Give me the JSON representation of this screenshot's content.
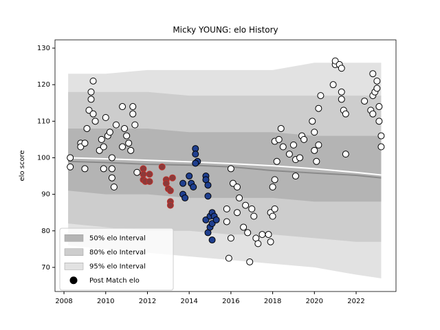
{
  "chart_data": {
    "type": "scatter",
    "title": "Micky YOUNG: elo History",
    "y_label": "elo score",
    "xlim": [
      2007.57,
      2023.91
    ],
    "ylim": [
      63.4,
      132.26
    ],
    "xticks": [
      2008,
      2010,
      2012,
      2014,
      2016,
      2018,
      2020,
      2022
    ],
    "yticks": [
      70,
      80,
      90,
      100,
      110,
      120,
      130
    ],
    "legend_position": "lower left",
    "bands": [
      {
        "name": "95% elo Interval",
        "color": "#e2e2e2",
        "x": [
          2008.2,
          2010,
          2012,
          2014,
          2016,
          2018,
          2020,
          2022,
          2023.2
        ],
        "upper": [
          123,
          123,
          124,
          124,
          124,
          124,
          126,
          126,
          126
        ],
        "lower": [
          76,
          75,
          74,
          73,
          72,
          71,
          70,
          68,
          67
        ]
      },
      {
        "name": "80% elo Interval",
        "color": "#cdcdcd",
        "x": [
          2008.2,
          2010,
          2012,
          2014,
          2016,
          2018,
          2020,
          2022,
          2023.2
        ],
        "upper": [
          118,
          118,
          118,
          117,
          117,
          117,
          117,
          117,
          117
        ],
        "lower": [
          82,
          81,
          80,
          80,
          79,
          79,
          78,
          77,
          77
        ]
      },
      {
        "name": "50% elo Interval",
        "color": "#b4b4b4",
        "x": [
          2008.2,
          2010,
          2012,
          2014,
          2016,
          2018,
          2020,
          2022,
          2023.2
        ],
        "upper": [
          108,
          108,
          108,
          107,
          107,
          107,
          106,
          106,
          106
        ],
        "lower": [
          91,
          90,
          90,
          89,
          89,
          89,
          88,
          88,
          88
        ]
      }
    ],
    "lines": [
      {
        "color": "#8a8a8a",
        "x": [
          2008.2,
          2010,
          2012,
          2014,
          2016,
          2018,
          2020,
          2022,
          2023.2
        ],
        "values": [
          99,
          98.7,
          98.2,
          98,
          97.5,
          96.5,
          95.8,
          95.2,
          94.5
        ]
      },
      {
        "color": "#ffffff",
        "x": [
          2008.2,
          2010,
          2012,
          2014,
          2016,
          2018,
          2020,
          2022,
          2023.2
        ],
        "values": [
          100,
          99.7,
          99.3,
          98.9,
          98.4,
          97.8,
          97,
          96,
          95.3
        ]
      }
    ],
    "series": [
      {
        "name": "Post Match elo",
        "color": "#ffffff",
        "edgecolor": "#000000",
        "x": [
          2008.3,
          2008.3,
          2008.8,
          2008.8,
          2009.0,
          2009.0,
          2009.1,
          2009.2,
          2009.3,
          2009.3,
          2009.4,
          2009.4,
          2009.5,
          2009.7,
          2009.8,
          2009.9,
          2009.9,
          2010.0,
          2010.1,
          2010.2,
          2010.3,
          2010.3,
          2010.3,
          2010.4,
          2010.5,
          2010.8,
          2010.8,
          2010.9,
          2011.0,
          2011.1,
          2011.2,
          2011.3,
          2011.3,
          2011.4,
          2011.5,
          2016.0,
          2016.1,
          2016.3,
          2016.4,
          2015.8,
          2015.8,
          2016.0,
          2015.9,
          2016.3,
          2016.6,
          2016.7,
          2016.8,
          2016.9,
          2017.0,
          2017.1,
          2017.2,
          2017.3,
          2017.5,
          2017.8,
          2017.9,
          2017.9,
          2018.0,
          2018.1,
          2018.0,
          2018.1,
          2018.2,
          2018.1,
          2018.3,
          2018.4,
          2018.5,
          2018.8,
          2019.0,
          2019.1,
          2019.1,
          2019.3,
          2019.4,
          2019.5,
          2019.9,
          2020.0,
          2020.0,
          2020.1,
          2020.2,
          2020.2,
          2020.3,
          2020.9,
          2021.0,
          2021.0,
          2021.2,
          2021.3,
          2021.3,
          2021.3,
          2021.4,
          2021.5,
          2021.5,
          2022.4,
          2022.7,
          2022.8,
          2022.8,
          2022.9,
          2022.8,
          2023.0,
          2023.0,
          2023.1,
          2023.1,
          2023.2,
          2023.2
        ],
        "values": [
          100,
          97.5,
          104,
          103,
          104,
          97,
          108,
          113,
          116,
          118,
          121,
          112,
          110,
          102,
          105,
          97,
          103,
          111,
          106,
          107,
          100,
          97,
          94.5,
          92,
          109,
          103,
          114,
          108,
          106,
          104,
          102,
          114,
          112,
          109,
          96,
          97,
          93,
          92,
          89,
          86,
          82.5,
          78,
          72.5,
          85,
          81,
          87,
          79.5,
          71.5,
          86,
          84,
          78,
          76.5,
          79,
          79,
          77,
          85,
          84,
          86,
          92,
          94,
          99,
          104.5,
          105,
          108,
          103,
          101,
          103.5,
          95,
          99.5,
          100,
          106,
          105,
          110,
          102,
          107,
          99,
          103.5,
          113.5,
          117,
          120,
          125.5,
          126.5,
          125.5,
          124.5,
          118,
          116,
          113,
          112,
          101,
          115.5,
          113,
          112,
          117,
          118,
          123,
          119,
          121,
          114,
          110,
          106,
          103
        ]
      },
      {
        "color": "#8b3a3a",
        "edgecolor": "#c0302a",
        "x": [
          2011.8,
          2011.8,
          2011.8,
          2011.9,
          2012.1,
          2012.1,
          2012.7,
          2012.9,
          2012.9,
          2013.0,
          2013.1,
          2013.1,
          2013.1,
          2013.2
        ],
        "values": [
          97,
          95.5,
          94,
          93.5,
          95.5,
          93.5,
          97.5,
          94,
          93,
          91.5,
          91,
          88,
          87,
          94.5
        ]
      },
      {
        "color": "#1f3f8f",
        "edgecolor": "#000000",
        "x": [
          2013.7,
          2013.7,
          2013.8,
          2014.0,
          2014.1,
          2014.2,
          2014.3,
          2014.3,
          2014.4,
          2014.3,
          2014.8,
          2014.8,
          2014.9,
          2014.8,
          2014.9,
          2015.0,
          2015.0,
          2015.1,
          2015.1,
          2015.2,
          2015.3,
          2015.1,
          2014.9
        ],
        "values": [
          93,
          90,
          89,
          95,
          93,
          92,
          102.5,
          101,
          99,
          98.5,
          95,
          94,
          89.5,
          83,
          79.5,
          84,
          81,
          85,
          82,
          84,
          83,
          77.5,
          92.5
        ]
      }
    ]
  }
}
